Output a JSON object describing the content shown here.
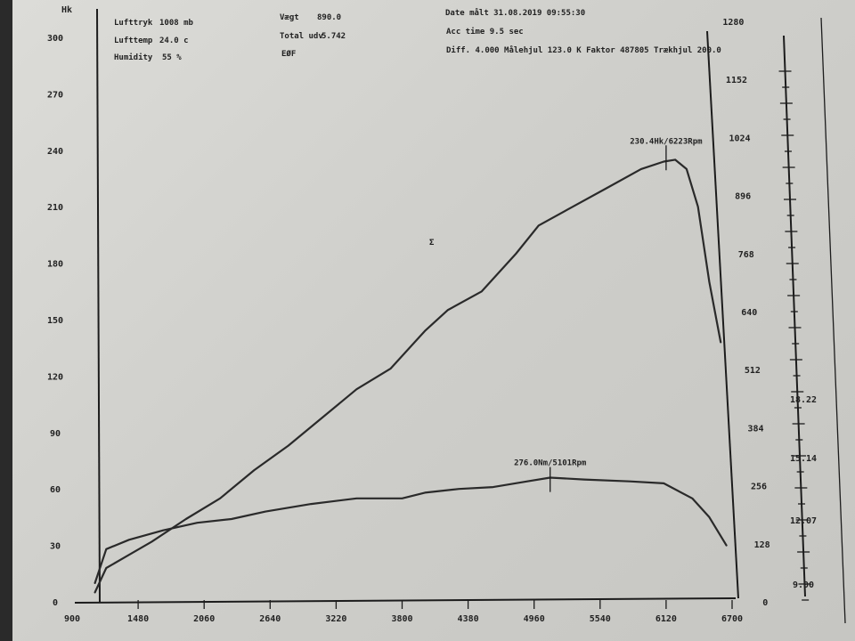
{
  "header": {
    "col1": [
      {
        "label": "Lufttryk",
        "value": "1008 mb"
      },
      {
        "label": "Lufttemp",
        "value": "24.0 c"
      },
      {
        "label": "Humidity",
        "value": "55 %"
      }
    ],
    "col2": [
      {
        "label": "Vægt",
        "value": "890.0"
      },
      {
        "label": "Total udv",
        "value": "5.742"
      },
      {
        "label": "EØF",
        "value": ""
      }
    ],
    "col3_line1": "Date målt 31.08.2019 09:55:30",
    "col3_line2": "Acc time  9.5 sec",
    "col3_line3": "Diff.   4.000  Målehjul 123.0  K Faktor 487805  Trækhjul 200.0"
  },
  "chart_data": {
    "type": "line",
    "title": "",
    "xlabel": "",
    "ylabel": "Hk",
    "xlim": [
      900,
      6700
    ],
    "x_ticks": [
      900,
      1480,
      2060,
      2640,
      3220,
      3800,
      4380,
      4960,
      5540,
      6120,
      6700
    ],
    "y_left_ticks": [
      0,
      30,
      60,
      90,
      120,
      150,
      180,
      210,
      240,
      270,
      300
    ],
    "y_left_tick_labels": [
      "0",
      "30",
      "60",
      "90",
      "120",
      "150",
      "180",
      "210",
      "240",
      "270",
      "300"
    ],
    "y_right_ticks": [
      0,
      128,
      256,
      384,
      512,
      640,
      768,
      896,
      1024,
      1152,
      1280
    ],
    "y_right2_ticks": [
      "9.00",
      "12.07",
      "15.14",
      "18.22"
    ],
    "series": [
      {
        "name": "Hk",
        "points": [
          [
            1100,
            5
          ],
          [
            1200,
            18
          ],
          [
            1400,
            25
          ],
          [
            1600,
            32
          ],
          [
            1900,
            44
          ],
          [
            2200,
            55
          ],
          [
            2500,
            70
          ],
          [
            2800,
            83
          ],
          [
            3100,
            98
          ],
          [
            3400,
            113
          ],
          [
            3700,
            124
          ],
          [
            4000,
            144
          ],
          [
            4200,
            155
          ],
          [
            4500,
            165
          ],
          [
            4800,
            185
          ],
          [
            5000,
            200
          ],
          [
            5300,
            210
          ],
          [
            5600,
            220
          ],
          [
            5900,
            230
          ],
          [
            6100,
            234
          ],
          [
            6200,
            235
          ],
          [
            6300,
            230
          ],
          [
            6400,
            210
          ],
          [
            6500,
            170
          ],
          [
            6600,
            138
          ]
        ]
      },
      {
        "name": "Nm",
        "points": [
          [
            1100,
            10
          ],
          [
            1200,
            28
          ],
          [
            1400,
            33
          ],
          [
            1700,
            38
          ],
          [
            2000,
            42
          ],
          [
            2300,
            44
          ],
          [
            2600,
            48
          ],
          [
            3000,
            52
          ],
          [
            3400,
            55
          ],
          [
            3800,
            55
          ],
          [
            4000,
            58
          ],
          [
            4300,
            60
          ],
          [
            4600,
            61
          ],
          [
            4900,
            64
          ],
          [
            5100,
            66
          ],
          [
            5400,
            65
          ],
          [
            5800,
            64
          ],
          [
            6100,
            63
          ],
          [
            6350,
            55
          ],
          [
            6500,
            45
          ],
          [
            6650,
            30
          ]
        ]
      }
    ],
    "annotations": [
      {
        "x": 6120,
        "y": 236,
        "text": "230.4Hk/6223Rpm"
      },
      {
        "x": 5101,
        "y": 65,
        "text": "276.0Nm/5101Rpm"
      }
    ],
    "stray_mark": "Σ"
  }
}
